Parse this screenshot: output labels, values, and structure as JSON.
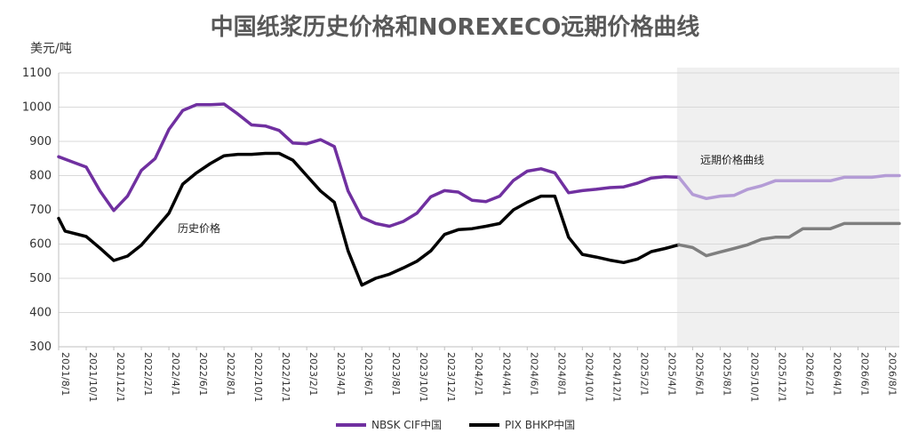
{
  "chart_data": {
    "type": "line",
    "title": "中国纸浆历史价格和NOREXECO远期价格曲线",
    "ylabel": "美元/吨",
    "ylim": [
      300,
      1100
    ],
    "yticks": [
      300,
      400,
      500,
      600,
      700,
      800,
      900,
      1000,
      1100
    ],
    "grid": true,
    "legend_position": "bottom",
    "x_start": "2021/8/1",
    "x_end": "2026/9/1",
    "xtick_labels": [
      "2021/8/1",
      "2021/10/1",
      "2021/12/1",
      "2022/2/1",
      "2022/4/1",
      "2022/6/1",
      "2022/8/1",
      "2022/10/1",
      "2022/12/1",
      "2023/2/1",
      "2023/4/1",
      "2023/6/1",
      "2023/8/1",
      "2023/10/1",
      "2023/12/1",
      "2024/2/1",
      "2024/4/1",
      "2024/6/1",
      "2024/8/1",
      "2024/10/1",
      "2024/12/1",
      "2025/2/1",
      "2025/4/1",
      "2025/6/1",
      "2025/8/1",
      "2025/10/1",
      "2025/12/1",
      "2026/2/1",
      "2026/4/1",
      "2026/6/1",
      "2026/8/1"
    ],
    "historical_end": "2025/5/1",
    "annotations": [
      {
        "text": "历史价格"
      },
      {
        "text": "远期价格曲线"
      }
    ],
    "series": [
      {
        "name": "NBSK CIF中国",
        "color": "#7030a0",
        "forward_color": "#b49cd6",
        "points": [
          [
            "2021/8/1",
            855
          ],
          [
            "2021/9/1",
            840
          ],
          [
            "2021/10/1",
            825
          ],
          [
            "2021/11/1",
            755
          ],
          [
            "2021/12/1",
            698
          ],
          [
            "2022/1/1",
            740
          ],
          [
            "2022/2/1",
            815
          ],
          [
            "2022/3/1",
            850
          ],
          [
            "2022/4/1",
            935
          ],
          [
            "2022/5/1",
            990
          ],
          [
            "2022/6/1",
            1007
          ],
          [
            "2022/7/1",
            1007
          ],
          [
            "2022/8/1",
            1009
          ],
          [
            "2022/9/1",
            980
          ],
          [
            "2022/10/1",
            948
          ],
          [
            "2022/11/1",
            945
          ],
          [
            "2022/12/1",
            932
          ],
          [
            "2023/1/1",
            895
          ],
          [
            "2023/2/1",
            893
          ],
          [
            "2023/3/1",
            905
          ],
          [
            "2023/4/1",
            885
          ],
          [
            "2023/5/1",
            755
          ],
          [
            "2023/6/1",
            678
          ],
          [
            "2023/7/1",
            660
          ],
          [
            "2023/8/1",
            652
          ],
          [
            "2023/9/1",
            666
          ],
          [
            "2023/10/1",
            690
          ],
          [
            "2023/11/1",
            738
          ],
          [
            "2023/12/1",
            756
          ],
          [
            "2024/1/1",
            752
          ],
          [
            "2024/2/1",
            728
          ],
          [
            "2024/3/1",
            724
          ],
          [
            "2024/4/1",
            740
          ],
          [
            "2024/5/1",
            786
          ],
          [
            "2024/6/1",
            813
          ],
          [
            "2024/7/1",
            820
          ],
          [
            "2024/8/1",
            808
          ],
          [
            "2024/9/1",
            750
          ],
          [
            "2024/10/1",
            756
          ],
          [
            "2024/11/1",
            760
          ],
          [
            "2024/12/1",
            765
          ],
          [
            "2025/1/1",
            767
          ],
          [
            "2025/2/1",
            778
          ],
          [
            "2025/3/1",
            793
          ],
          [
            "2025/4/1",
            797
          ],
          [
            "2025/5/1",
            795
          ],
          [
            "2025/6/1",
            745
          ],
          [
            "2025/7/1",
            733
          ],
          [
            "2025/8/1",
            740
          ],
          [
            "2025/9/1",
            742
          ],
          [
            "2025/10/1",
            760
          ],
          [
            "2025/11/1",
            770
          ],
          [
            "2025/12/1",
            785
          ],
          [
            "2026/1/1",
            785
          ],
          [
            "2026/2/1",
            785
          ],
          [
            "2026/3/1",
            785
          ],
          [
            "2026/4/1",
            785
          ],
          [
            "2026/5/1",
            795
          ],
          [
            "2026/6/1",
            795
          ],
          [
            "2026/7/1",
            795
          ],
          [
            "2026/8/1",
            800
          ],
          [
            "2026/9/1",
            800
          ]
        ]
      },
      {
        "name": "PIX BHKP中国",
        "color": "#000000",
        "forward_color": "#7f7f7f",
        "points": [
          [
            "2021/8/1",
            675
          ],
          [
            "2021/8/15",
            638
          ],
          [
            "2021/10/1",
            622
          ],
          [
            "2021/11/1",
            588
          ],
          [
            "2021/12/1",
            552
          ],
          [
            "2022/1/1",
            565
          ],
          [
            "2022/2/1",
            597
          ],
          [
            "2022/3/1",
            643
          ],
          [
            "2022/4/1",
            690
          ],
          [
            "2022/5/1",
            775
          ],
          [
            "2022/6/1",
            808
          ],
          [
            "2022/7/1",
            835
          ],
          [
            "2022/8/1",
            858
          ],
          [
            "2022/9/1",
            862
          ],
          [
            "2022/10/1",
            862
          ],
          [
            "2022/11/1",
            865
          ],
          [
            "2022/12/1",
            865
          ],
          [
            "2023/1/1",
            845
          ],
          [
            "2023/2/1",
            800
          ],
          [
            "2023/3/1",
            755
          ],
          [
            "2023/4/1",
            722
          ],
          [
            "2023/5/1",
            580
          ],
          [
            "2023/6/1",
            480
          ],
          [
            "2023/7/1",
            500
          ],
          [
            "2023/8/1",
            512
          ],
          [
            "2023/9/1",
            530
          ],
          [
            "2023/10/1",
            550
          ],
          [
            "2023/11/1",
            580
          ],
          [
            "2023/12/1",
            628
          ],
          [
            "2024/1/1",
            642
          ],
          [
            "2024/2/1",
            645
          ],
          [
            "2024/3/1",
            652
          ],
          [
            "2024/4/1",
            660
          ],
          [
            "2024/5/1",
            700
          ],
          [
            "2024/6/1",
            722
          ],
          [
            "2024/7/1",
            740
          ],
          [
            "2024/8/1",
            740
          ],
          [
            "2024/9/1",
            620
          ],
          [
            "2024/10/1",
            570
          ],
          [
            "2024/11/1",
            562
          ],
          [
            "2024/12/1",
            553
          ],
          [
            "2025/1/1",
            546
          ],
          [
            "2025/2/1",
            556
          ],
          [
            "2025/3/1",
            578
          ],
          [
            "2025/4/1",
            587
          ],
          [
            "2025/5/1",
            598
          ],
          [
            "2025/6/1",
            590
          ],
          [
            "2025/7/1",
            566
          ],
          [
            "2025/8/1",
            577
          ],
          [
            "2025/9/1",
            587
          ],
          [
            "2025/10/1",
            598
          ],
          [
            "2025/11/1",
            614
          ],
          [
            "2025/12/1",
            620
          ],
          [
            "2026/1/1",
            620
          ],
          [
            "2026/2/1",
            645
          ],
          [
            "2026/3/1",
            645
          ],
          [
            "2026/4/1",
            645
          ],
          [
            "2026/5/1",
            660
          ],
          [
            "2026/6/1",
            660
          ],
          [
            "2026/7/1",
            660
          ],
          [
            "2026/8/1",
            660
          ],
          [
            "2026/9/1",
            660
          ]
        ]
      }
    ]
  }
}
